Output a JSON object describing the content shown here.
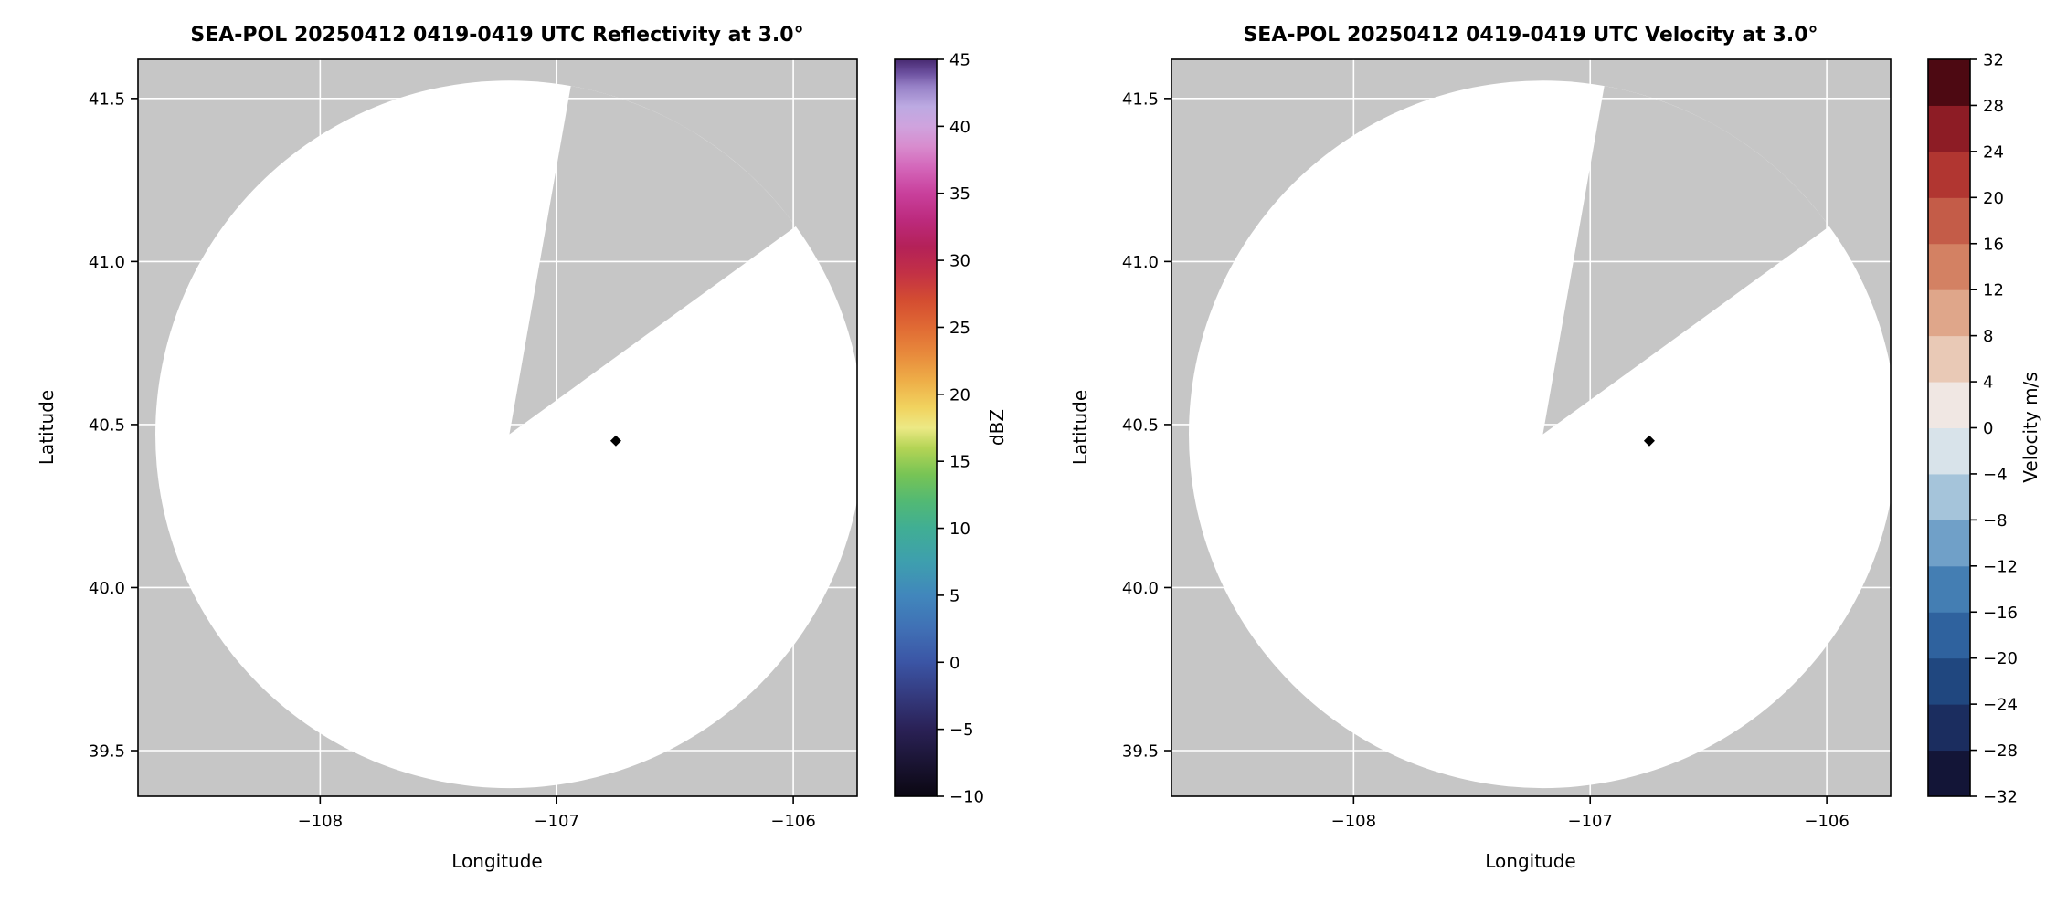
{
  "style": {
    "masked_color": "#c6c6c6",
    "scan_color": "#ffffff",
    "grid_color": "#ffffff",
    "spine_color": "#000000",
    "marker_color": "#000000",
    "background": "#ffffff"
  },
  "chart_data": [
    {
      "type": "radar_ppi",
      "title": "SEA-POL 20250412 0419-0419 UTC Reflectivity at 3.0°",
      "xlabel": "Longitude",
      "ylabel": "Latitude",
      "xlim": [
        -108.77,
        -105.73
      ],
      "ylim": [
        39.36,
        41.62
      ],
      "xticks": [
        -108,
        -107,
        -106
      ],
      "yticks": [
        39.5,
        40.0,
        40.5,
        41.0,
        41.5
      ],
      "grid": true,
      "radar_center": [
        -107.2,
        40.47
      ],
      "radar_radius_deg": 1.085,
      "masked_sector_azimuths": [
        10,
        54
      ],
      "echo_coverage": "none (clear scan, all gates below -10 dBZ)",
      "data_points": [
        {
          "lon": -106.75,
          "lat": 40.45,
          "shape": "diamond",
          "color": "#000000"
        }
      ],
      "colorbar": {
        "label": "dBZ",
        "min": -10,
        "max": 45,
        "ticks": [
          -10,
          -5,
          0,
          5,
          10,
          15,
          20,
          25,
          30,
          35,
          40,
          45
        ],
        "style": "continuous",
        "stops": [
          [
            -10,
            "#0b0712"
          ],
          [
            -7.5,
            "#1a1433"
          ],
          [
            -5,
            "#2a2156"
          ],
          [
            -2.5,
            "#343a7e"
          ],
          [
            0,
            "#3b55a5"
          ],
          [
            2.5,
            "#4070b5"
          ],
          [
            5,
            "#4187bc"
          ],
          [
            7.5,
            "#3e9fae"
          ],
          [
            10,
            "#40ae94"
          ],
          [
            12,
            "#52b974"
          ],
          [
            14,
            "#77c455"
          ],
          [
            16,
            "#b4d455"
          ],
          [
            17.5,
            "#ece985"
          ],
          [
            19,
            "#f1d35f"
          ],
          [
            21,
            "#eeae48"
          ],
          [
            23,
            "#e88a3c"
          ],
          [
            25,
            "#e06a34"
          ],
          [
            27,
            "#d44d31"
          ],
          [
            29,
            "#c33145"
          ],
          [
            31,
            "#b42158"
          ],
          [
            33,
            "#bc2a7d"
          ],
          [
            35,
            "#c9409c"
          ],
          [
            37,
            "#d468bb"
          ],
          [
            38.5,
            "#d88cce"
          ],
          [
            40,
            "#cfa3de"
          ],
          [
            41.5,
            "#bcaae2"
          ],
          [
            43,
            "#9680c6"
          ],
          [
            44,
            "#6b4f9e"
          ],
          [
            45,
            "#482a72"
          ]
        ]
      }
    },
    {
      "type": "radar_ppi",
      "title": "SEA-POL 20250412 0419-0419 UTC Velocity at 3.0°",
      "xlabel": "Longitude",
      "ylabel": "Latitude",
      "xlim": [
        -108.77,
        -105.73
      ],
      "ylim": [
        39.36,
        41.62
      ],
      "xticks": [
        -108,
        -107,
        -106
      ],
      "yticks": [
        39.5,
        40.0,
        40.5,
        41.0,
        41.5
      ],
      "grid": true,
      "radar_center": [
        -107.2,
        40.47
      ],
      "radar_radius_deg": 1.085,
      "masked_sector_azimuths": [
        10,
        54
      ],
      "echo_coverage": "none (clear scan, no velocity data)",
      "data_points": [
        {
          "lon": -106.75,
          "lat": 40.45,
          "shape": "diamond",
          "color": "#000000"
        }
      ],
      "colorbar": {
        "label": "Velocity m/s",
        "min": -32,
        "max": 32,
        "ticks": [
          -32,
          -28,
          -24,
          -20,
          -16,
          -12,
          -8,
          -4,
          0,
          4,
          8,
          12,
          16,
          20,
          24,
          28,
          32
        ],
        "style": "discrete",
        "band_size": 4,
        "bands": [
          [
            -32,
            "#131537"
          ],
          [
            -28,
            "#1b2d5f"
          ],
          [
            -24,
            "#20477f"
          ],
          [
            -20,
            "#2f629e"
          ],
          [
            -16,
            "#447eb3"
          ],
          [
            -12,
            "#70a0c8"
          ],
          [
            -8,
            "#a5c4da"
          ],
          [
            -4,
            "#d8e3ea"
          ],
          [
            0,
            "#f0e7e3"
          ],
          [
            4,
            "#e9c9b6"
          ],
          [
            8,
            "#dfa68a"
          ],
          [
            12,
            "#d38163"
          ],
          [
            16,
            "#c45c48"
          ],
          [
            20,
            "#b13631"
          ],
          [
            24,
            "#8d1c25"
          ],
          [
            28,
            "#4d0912"
          ]
        ]
      }
    }
  ]
}
